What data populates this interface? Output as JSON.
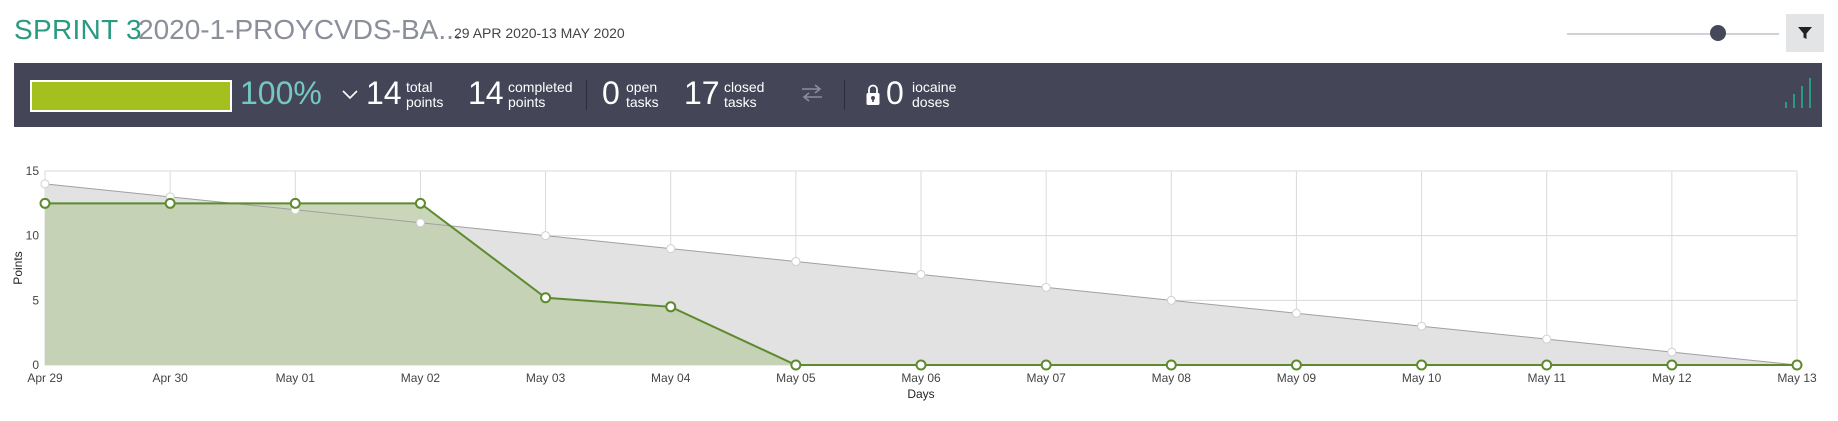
{
  "header": {
    "sprint_label": "SPRINT 3",
    "sprint_name": "2020-1-PROYCVDS-BA...",
    "dates": "29 APR 2020-13 MAY 2020"
  },
  "controls": {
    "zoom_slider_value": 0.71,
    "filter_icon": "filter-icon"
  },
  "summary": {
    "progress_percent": 100,
    "percent_text": "100%",
    "total_points": "14",
    "total_points_label_1": "total",
    "total_points_label_2": "points",
    "completed_points": "14",
    "completed_points_label_1": "completed",
    "completed_points_label_2": "points",
    "open_tasks": "0",
    "open_tasks_label_1": "open",
    "open_tasks_label_2": "tasks",
    "closed_tasks": "17",
    "closed_tasks_label_1": "closed",
    "closed_tasks_label_2": "tasks",
    "iocaine_doses": "0",
    "iocaine_label_1": "iocaine",
    "iocaine_label_2": "doses",
    "colors": {
      "bar_bg": "#444657",
      "progress": "#a3c01f",
      "percent": "#74c8c0",
      "signal": "#2a9a80"
    }
  },
  "chart_data": {
    "type": "area",
    "xlabel": "Days",
    "ylabel": "Points",
    "ylim": [
      0,
      15
    ],
    "yticks": [
      0,
      5,
      10,
      15
    ],
    "categories": [
      "Apr 29",
      "Apr 30",
      "May 01",
      "May 02",
      "May 03",
      "May 04",
      "May 05",
      "May 06",
      "May 07",
      "May 08",
      "May 09",
      "May 10",
      "May 11",
      "May 12",
      "May 13"
    ],
    "grid": true,
    "series": [
      {
        "name": "",
        "color": "#a0a0a0",
        "fill": "#e2e2e2",
        "values": [
          14,
          13,
          12,
          11,
          10,
          9,
          8,
          7,
          6,
          5,
          4,
          3,
          2,
          1,
          0
        ]
      },
      {
        "name": "",
        "color": "#5d8a2e",
        "fill": "#bfcfae",
        "values": [
          12.5,
          12.5,
          12.5,
          12.5,
          5.2,
          4.5,
          0,
          0,
          0,
          0,
          0,
          0,
          0,
          0,
          0
        ]
      }
    ]
  }
}
